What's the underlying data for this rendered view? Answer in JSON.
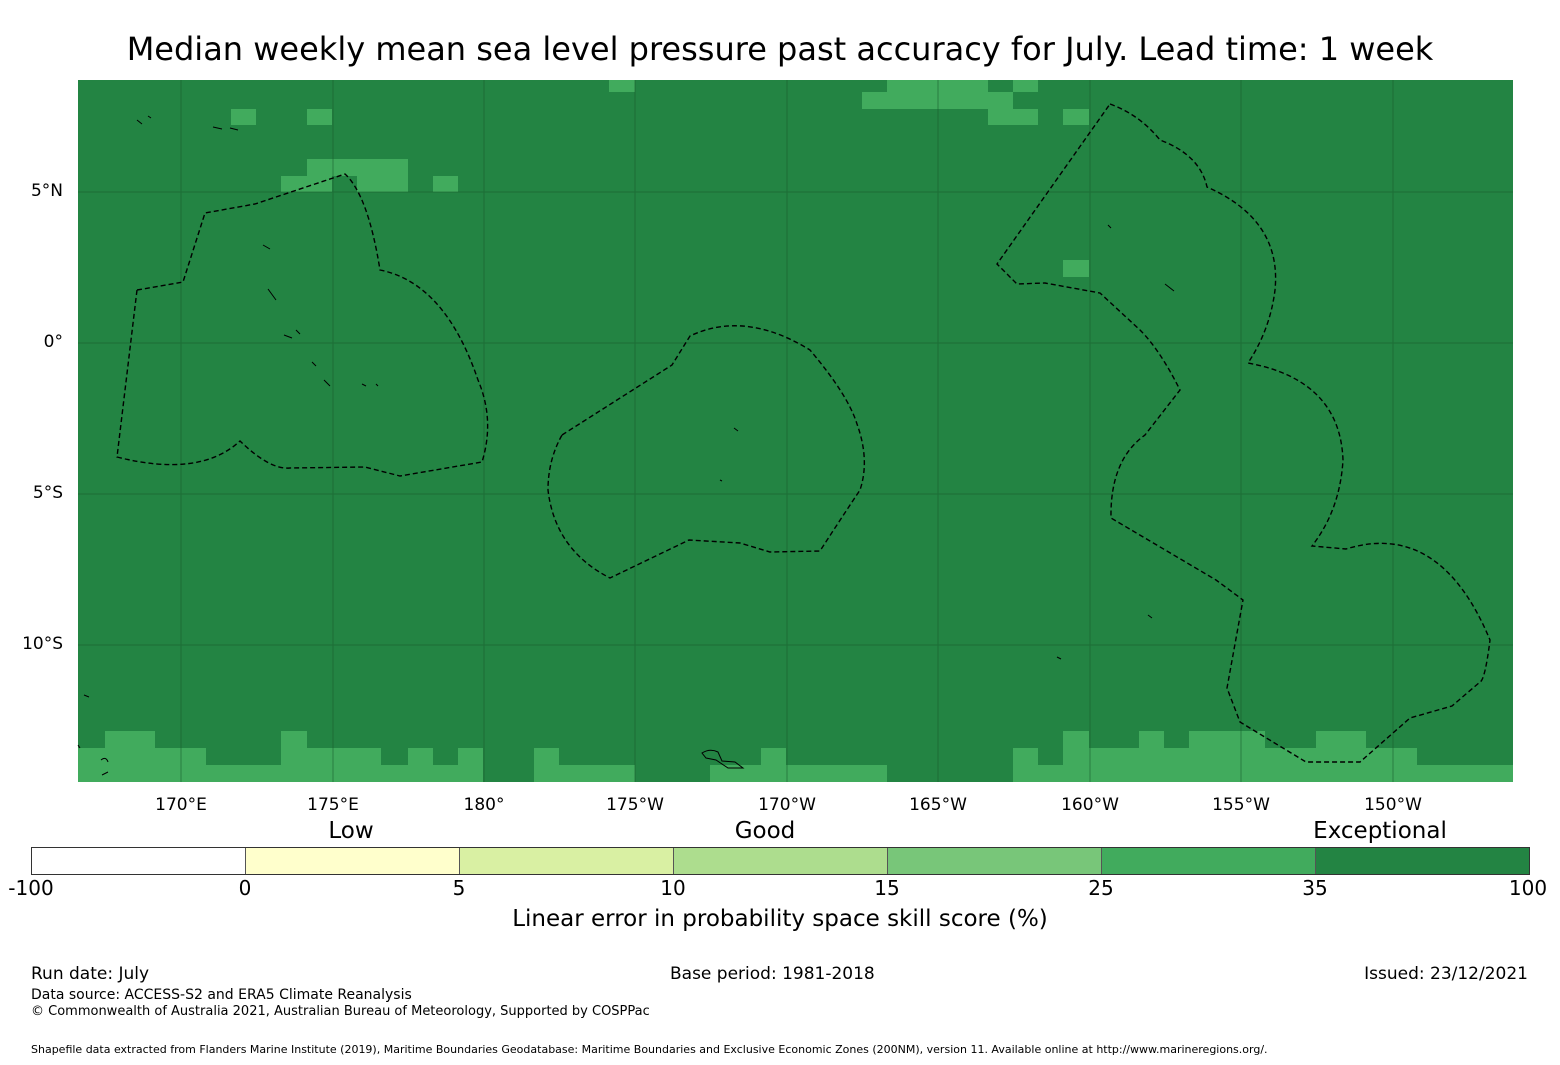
{
  "title": "Median weekly mean sea level pressure past accuracy for July. Lead time: 1 week",
  "map": {
    "lat_ticks": [
      "5°N",
      "0°",
      "5°S",
      "10°S"
    ],
    "lon_ticks": [
      "170°E",
      "175°E",
      "180°",
      "175°W",
      "170°W",
      "165°W",
      "160°W",
      "155°W",
      "150°W"
    ],
    "background_color": "#238443",
    "highlight_color": "#41ab5d",
    "boundary_style": "dashed black"
  },
  "legend": {
    "categories": [
      "Low",
      "Good",
      "Exceptional"
    ],
    "ticks": [
      "-100",
      "0",
      "5",
      "10",
      "15",
      "25",
      "35",
      "100"
    ],
    "colors": [
      "#ffffff",
      "#ffffcc",
      "#d9f0a3",
      "#addd8e",
      "#78c679",
      "#41ab5d",
      "#238443"
    ],
    "label": "Linear error in probability space skill score (%)"
  },
  "footer": {
    "run_date": "Run date: July",
    "base_period": "Base period: 1981-2018",
    "issued": "Issued: 23/12/2021",
    "data_source": "Data source: ACCESS-S2 and ERA5 Climate Reanalysis",
    "copyright": "© Commonwealth of Australia 2021, Australian Bureau of Meteorology, Supported by COSPPac",
    "shapefile": "Shapefile data extracted from Flanders Marine Institute (2019), Maritime Boundaries Geodatabase: Maritime Boundaries and Exclusive Economic Zones (200NM), version 11. Available online at http://www.marineregions.org/."
  }
}
